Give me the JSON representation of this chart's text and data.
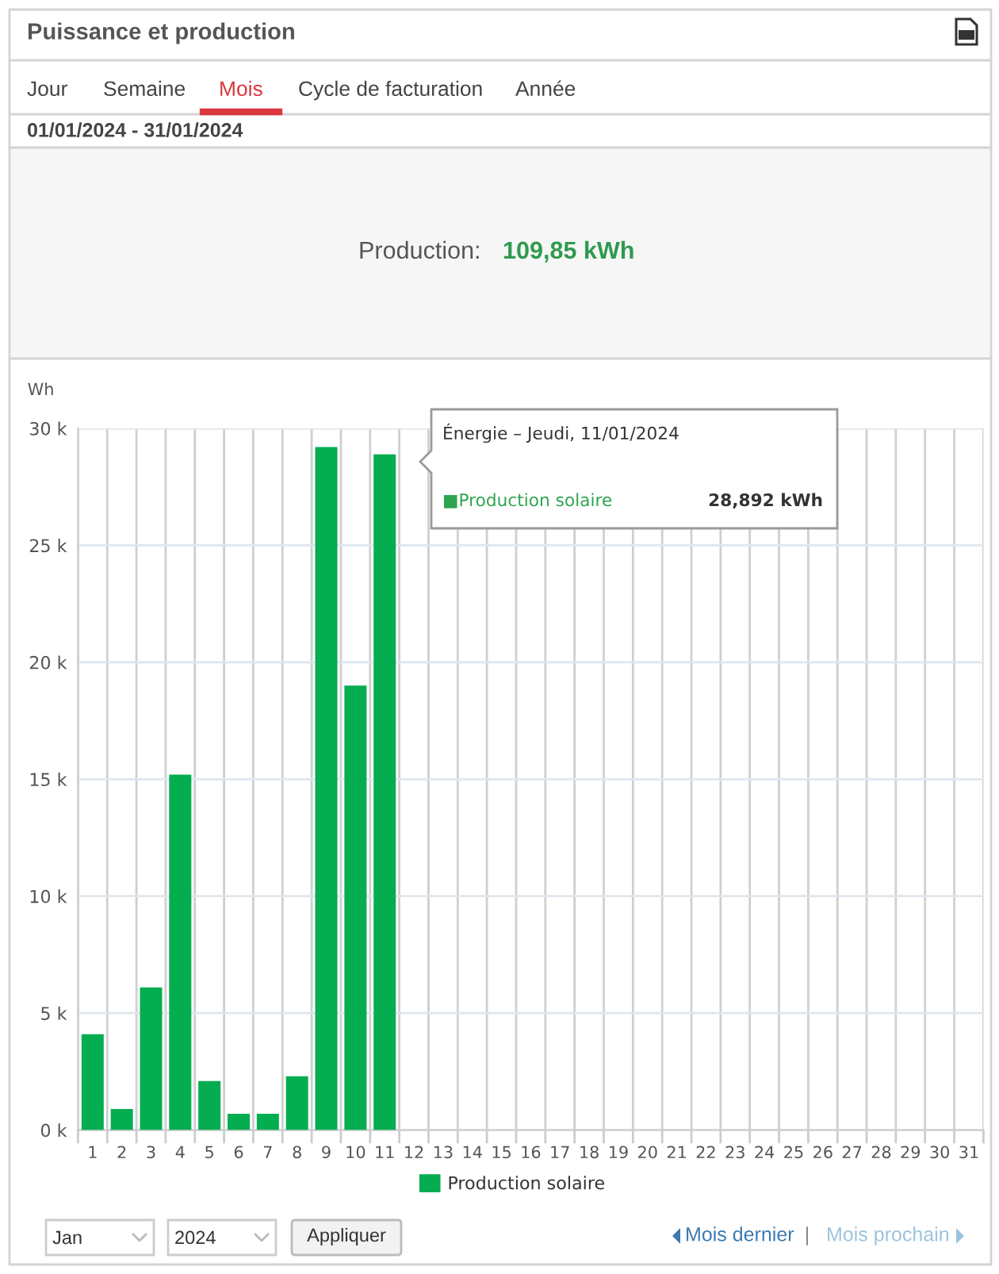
{
  "chart_data": {
    "type": "bar",
    "title": "Puissance et production",
    "subtitle": "01/01/2024 - 31/01/2024",
    "ylabel": "Wh",
    "categories": [
      "1",
      "2",
      "3",
      "4",
      "5",
      "6",
      "7",
      "8",
      "9",
      "10",
      "11",
      "12",
      "13",
      "14",
      "15",
      "16",
      "17",
      "18",
      "19",
      "20",
      "21",
      "22",
      "23",
      "24",
      "25",
      "26",
      "27",
      "28",
      "29",
      "30",
      "31"
    ],
    "series": [
      {
        "name": "Production solaire",
        "color": "#04ad50",
        "values": [
          4100,
          900,
          6100,
          15200,
          2100,
          700,
          700,
          2300,
          29200,
          19000,
          28892,
          null,
          null,
          null,
          null,
          null,
          null,
          null,
          null,
          null,
          null,
          null,
          null,
          null,
          null,
          null,
          null,
          null,
          null,
          null,
          null
        ]
      }
    ],
    "ylim": [
      0,
      30000
    ],
    "yticks": [
      {
        "value": 0,
        "label": "0 k"
      },
      {
        "value": 5000,
        "label": "5 k"
      },
      {
        "value": 10000,
        "label": "10 k"
      },
      {
        "value": 15000,
        "label": "15 k"
      },
      {
        "value": 20000,
        "label": "20 k"
      },
      {
        "value": 25000,
        "label": "25 k"
      },
      {
        "value": 30000,
        "label": "30 k"
      }
    ],
    "grid": true,
    "legend": "bottom",
    "annotations": [
      "Jour",
      "Semaine",
      "Mois",
      "Cycle de facturation",
      "Année",
      "Production:",
      "109,85 kWh",
      "Énergie – Jeudi, 11/01/2024",
      "■Production solaire",
      "28,892 kWh",
      "Jan",
      "2024",
      "Appliquer",
      "Mois dernier",
      "|",
      "Mois prochain"
    ]
  }
}
